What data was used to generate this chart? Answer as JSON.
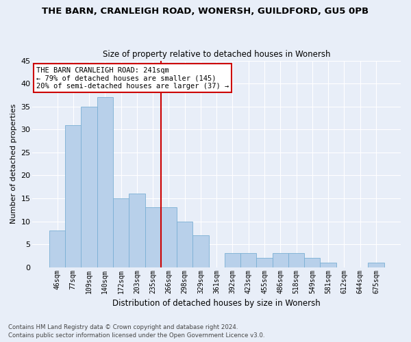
{
  "title": "THE BARN, CRANLEIGH ROAD, WONERSH, GUILDFORD, GU5 0PB",
  "subtitle": "Size of property relative to detached houses in Wonersh",
  "xlabel": "Distribution of detached houses by size in Wonersh",
  "ylabel": "Number of detached properties",
  "bar_labels": [
    "46sqm",
    "77sqm",
    "109sqm",
    "140sqm",
    "172sqm",
    "203sqm",
    "235sqm",
    "266sqm",
    "298sqm",
    "329sqm",
    "361sqm",
    "392sqm",
    "423sqm",
    "455sqm",
    "486sqm",
    "518sqm",
    "549sqm",
    "581sqm",
    "612sqm",
    "644sqm",
    "675sqm"
  ],
  "bar_values": [
    8,
    31,
    35,
    37,
    15,
    16,
    13,
    13,
    10,
    7,
    0,
    3,
    3,
    2,
    3,
    3,
    2,
    1,
    0,
    0,
    1
  ],
  "bar_color": "#b8d0ea",
  "bar_edge_color": "#7aafd4",
  "bg_color": "#e8eef8",
  "grid_color": "#ffffff",
  "annotation_box_text": "THE BARN CRANLEIGH ROAD: 241sqm\n← 79% of detached houses are smaller (145)\n20% of semi-detached houses are larger (37) →",
  "annotation_box_color": "#cc0000",
  "footer_line1": "Contains HM Land Registry data © Crown copyright and database right 2024.",
  "footer_line2": "Contains public sector information licensed under the Open Government Licence v3.0.",
  "ylim": [
    0,
    45
  ],
  "yticks": [
    0,
    5,
    10,
    15,
    20,
    25,
    30,
    35,
    40,
    45
  ],
  "vline_idx": 6
}
